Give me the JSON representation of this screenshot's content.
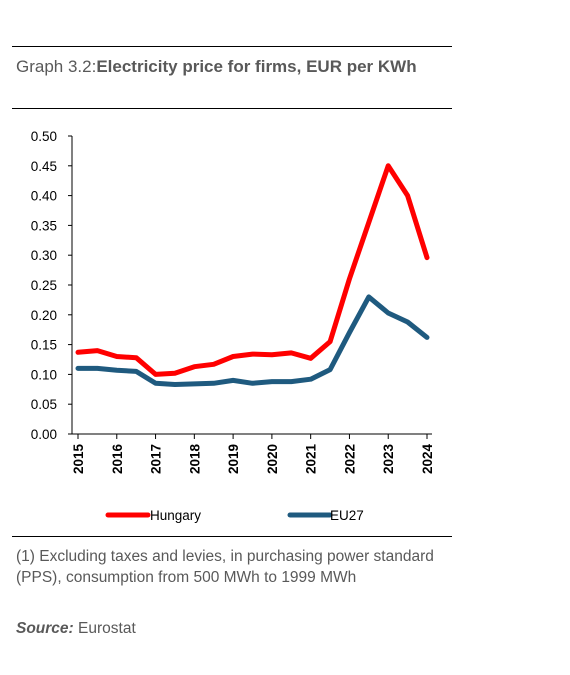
{
  "header": {
    "graph_label": "Graph 3.2:",
    "title": "Electricity price for firms, EUR per KWh"
  },
  "chart_data": {
    "type": "line",
    "title": "Electricity price for firms, EUR per KWh",
    "x": [
      2015,
      2015.5,
      2016,
      2016.5,
      2017,
      2017.5,
      2018,
      2018.5,
      2019,
      2019.5,
      2020,
      2020.5,
      2021,
      2021.5,
      2022,
      2022.5,
      2023,
      2023.5,
      2024
    ],
    "xticks": [
      "2015",
      "2016",
      "2017",
      "2018",
      "2019",
      "2020",
      "2021",
      "2022",
      "2023",
      "2024"
    ],
    "yticks": [
      "0.00",
      "0.05",
      "0.10",
      "0.15",
      "0.20",
      "0.25",
      "0.30",
      "0.35",
      "0.40",
      "0.45",
      "0.50"
    ],
    "ylim": [
      0,
      0.5
    ],
    "xlim": [
      2015,
      2024
    ],
    "series": [
      {
        "name": "Hungary",
        "color": "#ff0000",
        "values": [
          0.137,
          0.14,
          0.13,
          0.128,
          0.1,
          0.102,
          0.113,
          0.117,
          0.13,
          0.134,
          0.133,
          0.136,
          0.127,
          0.155,
          0.26,
          0.355,
          0.45,
          0.4,
          0.296
        ]
      },
      {
        "name": "EU27",
        "color": "#1f5a7f",
        "values": [
          0.11,
          0.11,
          0.107,
          0.105,
          0.085,
          0.083,
          0.084,
          0.085,
          0.09,
          0.085,
          0.088,
          0.088,
          0.092,
          0.108,
          0.17,
          0.23,
          0.203,
          0.188,
          0.162
        ]
      }
    ],
    "legend_position": "bottom",
    "grid": false
  },
  "notes": {
    "text": "(1) Excluding taxes and levies, in purchasing power standard (PPS), consumption from 500 MWh to 1999 MWh",
    "source_label": "Source:",
    "source_value": " Eurostat"
  }
}
